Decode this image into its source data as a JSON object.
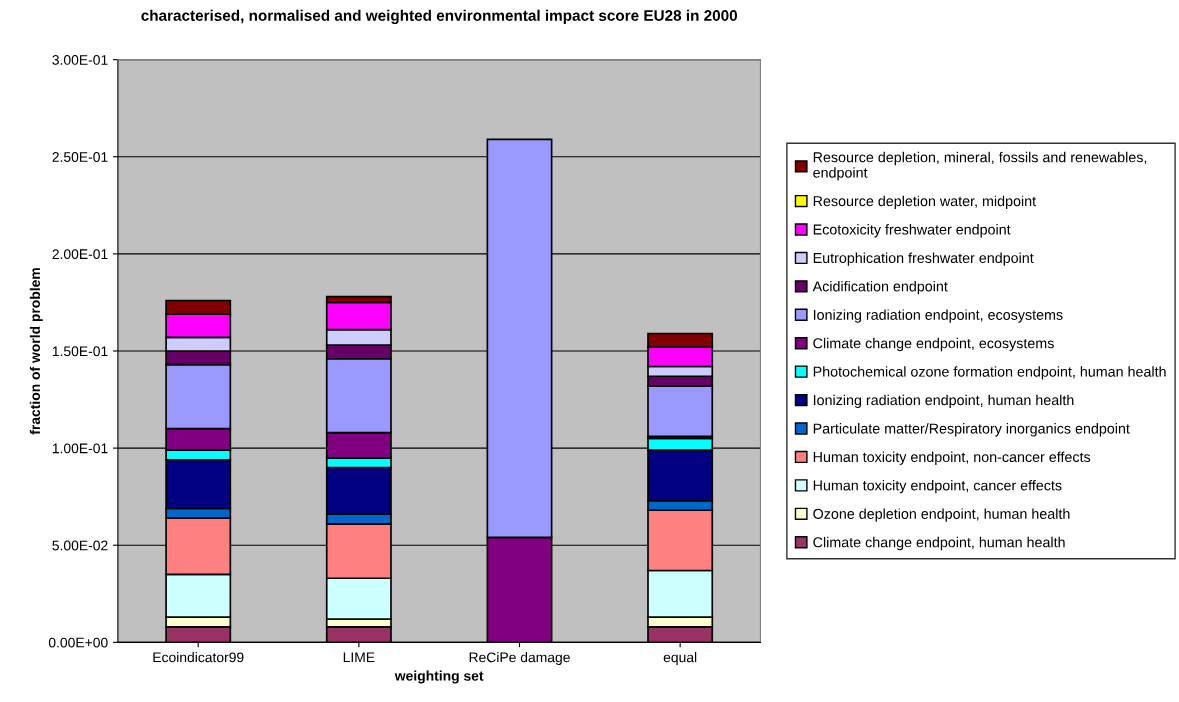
{
  "chart_data": {
    "type": "bar",
    "stacked": true,
    "title": "characterised, normalised and weighted environmental impact score EU28 in 2000",
    "xlabel": "weighting set",
    "ylabel": "fraction of world problem",
    "categories": [
      "Ecoindicator99",
      "LIME",
      "ReCiPe damage",
      "equal"
    ],
    "series": [
      {
        "name": "Climate change endpoint, human health",
        "color": "#993366",
        "values": [
          0.008,
          0.008,
          0,
          0.008
        ]
      },
      {
        "name": "Ozone depletion endpoint, human health",
        "color": "#ffffcc",
        "values": [
          0.005,
          0.004,
          0,
          0.005
        ]
      },
      {
        "name": "Human toxicity endpoint, cancer effects",
        "color": "#ccffff",
        "values": [
          0.022,
          0.021,
          0,
          0.024
        ]
      },
      {
        "name": "Human toxicity endpoint, non-cancer effects",
        "color": "#ff8080",
        "values": [
          0.029,
          0.028,
          0,
          0.031
        ]
      },
      {
        "name": "Particulate matter/Respiratory inorganics endpoint",
        "color": "#0066cc",
        "values": [
          0.005,
          0.005,
          0,
          0.005
        ]
      },
      {
        "name": "Ionizing radiation endpoint, human health",
        "color": "#000080",
        "values": [
          0.025,
          0.024,
          0,
          0.026
        ]
      },
      {
        "name": "Photochemical ozone formation endpoint, human health",
        "color": "#00ffff",
        "values": [
          0.005,
          0.005,
          0,
          0.006
        ]
      },
      {
        "name": "Climate change endpoint, ecosystems",
        "color": "#800080",
        "values": [
          0.011,
          0.013,
          0.054,
          0.001
        ]
      },
      {
        "name": "Ionizing radiation endpoint, ecosystems",
        "color": "#9999ff",
        "values": [
          0.033,
          0.038,
          0.205,
          0.026
        ]
      },
      {
        "name": "Acidification endpoint",
        "color": "#660066",
        "values": [
          0.007,
          0.007,
          0,
          0.005
        ]
      },
      {
        "name": "Eutrophication freshwater endpoint",
        "color": "#ccccff",
        "values": [
          0.007,
          0.008,
          0,
          0.005
        ]
      },
      {
        "name": "Ecotoxicity freshwater endpoint",
        "color": "#ff00ff",
        "values": [
          0.012,
          0.014,
          0,
          0.01
        ]
      },
      {
        "name": "Resource depletion water, midpoint",
        "color": "#ffff00",
        "values": [
          0,
          0,
          0,
          0
        ]
      },
      {
        "name": "Resource depletion, mineral, fossils and renewables, endpoint",
        "color": "#800000",
        "values": [
          0.007,
          0.003,
          0,
          0.007
        ]
      }
    ],
    "ylim": [
      0,
      0.3
    ],
    "yticks": [
      {
        "value": 0,
        "label": "0.00E+00"
      },
      {
        "value": 0.05,
        "label": "5.00E-02"
      },
      {
        "value": 0.1,
        "label": "1.00E-01"
      },
      {
        "value": 0.15,
        "label": "1.50E-01"
      },
      {
        "value": 0.2,
        "label": "2.00E-01"
      },
      {
        "value": 0.25,
        "label": "2.50E-01"
      },
      {
        "value": 0.3,
        "label": "3.00E-01"
      }
    ],
    "grid": "y",
    "legend": "right"
  }
}
